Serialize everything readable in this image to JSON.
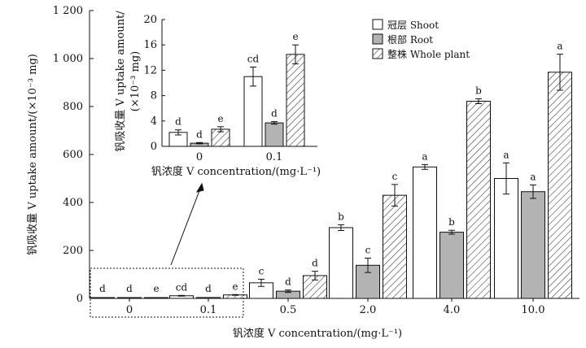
{
  "chart_data": [
    {
      "type": "bar",
      "categories": [
        "0",
        "0.1",
        "0.5",
        "2.0",
        "4.0",
        "10.0"
      ],
      "series": [
        {
          "name": "冠层 Shoot",
          "values": [
            2.2,
            11.0,
            65,
            295,
            548,
            500
          ],
          "errors": [
            0.4,
            1.5,
            15,
            12,
            10,
            65
          ],
          "labels": [
            "d",
            "cd",
            "c",
            "b",
            "a",
            "a"
          ]
        },
        {
          "name": "根部 Root",
          "values": [
            0.5,
            3.7,
            30,
            138,
            276,
            445
          ],
          "errors": [
            0.1,
            0.2,
            5,
            30,
            8,
            28
          ],
          "labels": [
            "d",
            "d",
            "d",
            "c",
            "b",
            "a"
          ]
        },
        {
          "name": "整株 Whole plant",
          "values": [
            2.7,
            14.5,
            95,
            430,
            822,
            943
          ],
          "errors": [
            0.4,
            1.5,
            18,
            45,
            10,
            75
          ],
          "labels": [
            "e",
            "e",
            "d",
            "c",
            "b",
            "a"
          ]
        }
      ],
      "xlabel": "钒浓度 V concentration/(mg·L⁻¹)",
      "ylabel": "钒吸收量 V uptake amount/(×10⁻³ mg)",
      "ylim": [
        0,
        1200
      ],
      "yticks": [
        "0",
        "200",
        "400",
        "600",
        "800",
        "1 000",
        "1 200"
      ],
      "legend_position": "top-right",
      "grid": false
    },
    {
      "type": "bar",
      "categories": [
        "0",
        "0.1"
      ],
      "series": [
        {
          "name": "冠层 Shoot",
          "values": [
            2.2,
            11.0
          ],
          "errors": [
            0.4,
            1.5
          ],
          "labels": [
            "d",
            "cd"
          ]
        },
        {
          "name": "根部 Root",
          "values": [
            0.5,
            3.7
          ],
          "errors": [
            0.1,
            0.2
          ],
          "labels": [
            "d",
            "d"
          ]
        },
        {
          "name": "整株 Whole plant",
          "values": [
            2.7,
            14.5
          ],
          "errors": [
            0.4,
            1.5
          ],
          "labels": [
            "e",
            "e"
          ]
        }
      ],
      "xlabel": "钒浓度 V concentration/(mg·L⁻¹)",
      "ylabel": "钒吸收量 V uptake amount/",
      "ylabel2": "(×10⁻³ mg)",
      "ylim": [
        0,
        20
      ],
      "yticks": [
        "0",
        "4",
        "8",
        "12",
        "16",
        "20"
      ],
      "grid": false
    }
  ]
}
